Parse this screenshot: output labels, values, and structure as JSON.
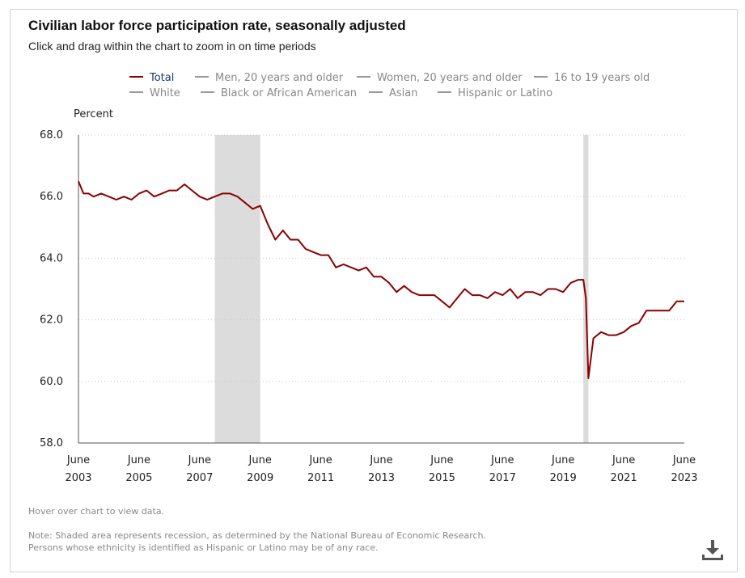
{
  "header": {
    "title": "Civilian labor force participation rate, seasonally adjusted",
    "subtitle": "Click and drag within the chart to zoom in on time periods"
  },
  "legend": [
    {
      "label": "Total",
      "active": true
    },
    {
      "label": "Men, 20 years and older",
      "active": false
    },
    {
      "label": "Women, 20 years and older",
      "active": false
    },
    {
      "label": "16 to 19 years old",
      "active": false
    },
    {
      "label": "White",
      "active": false
    },
    {
      "label": "Black or African American",
      "active": false
    },
    {
      "label": "Asian",
      "active": false
    },
    {
      "label": "Hispanic or Latino",
      "active": false
    }
  ],
  "footer": {
    "hover_hint": "Hover over chart to view data.",
    "note_line1": "Note: Shaded area represents recession, as determined by the National Bureau of Economic Research.",
    "note_line2": "Persons whose ethnicity is identified as Hispanic or Latino may be of any race.",
    "download_icon": "download-icon"
  },
  "colors": {
    "series": "#8b0000",
    "recession": "#dcdcdc",
    "grid": "#c8c8c8",
    "axis": "#555555"
  },
  "chart_data": {
    "type": "line",
    "title": "Civilian labor force participation rate, seasonally adjusted",
    "ylabel": "Percent",
    "ylim": [
      58.0,
      68.0
    ],
    "yticks": [
      "58.0",
      "60.0",
      "62.0",
      "64.0",
      "66.0",
      "68.0"
    ],
    "xlim": [
      "2003-06",
      "2023-06"
    ],
    "xticks": [
      {
        "month": "June",
        "year": "2003",
        "date": "2003-06"
      },
      {
        "month": "June",
        "year": "2005",
        "date": "2005-06"
      },
      {
        "month": "June",
        "year": "2007",
        "date": "2007-06"
      },
      {
        "month": "June",
        "year": "2009",
        "date": "2009-06"
      },
      {
        "month": "June",
        "year": "2011",
        "date": "2011-06"
      },
      {
        "month": "June",
        "year": "2013",
        "date": "2013-06"
      },
      {
        "month": "June",
        "year": "2015",
        "date": "2015-06"
      },
      {
        "month": "June",
        "year": "2017",
        "date": "2017-06"
      },
      {
        "month": "June",
        "year": "2019",
        "date": "2019-06"
      },
      {
        "month": "June",
        "year": "2021",
        "date": "2021-06"
      },
      {
        "month": "June",
        "year": "2023",
        "date": "2023-06"
      }
    ],
    "grid": "horizontal dotted",
    "recessions": [
      {
        "start": "2007-12",
        "end": "2009-06"
      },
      {
        "start": "2020-02",
        "end": "2020-04"
      }
    ],
    "series": [
      {
        "name": "Total",
        "x": [
          "2003-06",
          "2003-08",
          "2003-10",
          "2003-12",
          "2004-03",
          "2004-06",
          "2004-09",
          "2004-12",
          "2005-03",
          "2005-06",
          "2005-09",
          "2005-12",
          "2006-03",
          "2006-06",
          "2006-09",
          "2006-12",
          "2007-03",
          "2007-06",
          "2007-09",
          "2007-12",
          "2008-03",
          "2008-06",
          "2008-09",
          "2008-12",
          "2009-03",
          "2009-06",
          "2009-09",
          "2009-12",
          "2010-03",
          "2010-06",
          "2010-09",
          "2010-12",
          "2011-03",
          "2011-06",
          "2011-09",
          "2011-12",
          "2012-03",
          "2012-06",
          "2012-09",
          "2012-12",
          "2013-03",
          "2013-06",
          "2013-09",
          "2013-12",
          "2014-03",
          "2014-06",
          "2014-09",
          "2014-12",
          "2015-03",
          "2015-06",
          "2015-09",
          "2015-12",
          "2016-03",
          "2016-06",
          "2016-09",
          "2016-12",
          "2017-03",
          "2017-06",
          "2017-09",
          "2017-12",
          "2018-03",
          "2018-06",
          "2018-09",
          "2018-12",
          "2019-03",
          "2019-06",
          "2019-09",
          "2019-12",
          "2020-02",
          "2020-03",
          "2020-04",
          "2020-06",
          "2020-09",
          "2020-12",
          "2021-03",
          "2021-06",
          "2021-09",
          "2021-12",
          "2022-03",
          "2022-06",
          "2022-09",
          "2022-12",
          "2023-03",
          "2023-06"
        ],
        "y": [
          66.5,
          66.1,
          66.1,
          66.0,
          66.1,
          66.0,
          65.9,
          66.0,
          65.9,
          66.1,
          66.2,
          66.0,
          66.1,
          66.2,
          66.2,
          66.4,
          66.2,
          66.0,
          65.9,
          66.0,
          66.1,
          66.1,
          66.0,
          65.8,
          65.6,
          65.7,
          65.1,
          64.6,
          64.9,
          64.6,
          64.6,
          64.3,
          64.2,
          64.1,
          64.1,
          63.7,
          63.8,
          63.7,
          63.6,
          63.7,
          63.4,
          63.4,
          63.2,
          62.9,
          63.1,
          62.9,
          62.8,
          62.8,
          62.8,
          62.6,
          62.4,
          62.7,
          63.0,
          62.8,
          62.8,
          62.7,
          62.9,
          62.8,
          63.0,
          62.7,
          62.9,
          62.9,
          62.8,
          63.0,
          63.0,
          62.9,
          63.2,
          63.3,
          63.3,
          62.7,
          60.1,
          61.4,
          61.6,
          61.5,
          61.5,
          61.6,
          61.8,
          61.9,
          62.3,
          62.3,
          62.3,
          62.3,
          62.6,
          62.6
        ]
      }
    ]
  }
}
